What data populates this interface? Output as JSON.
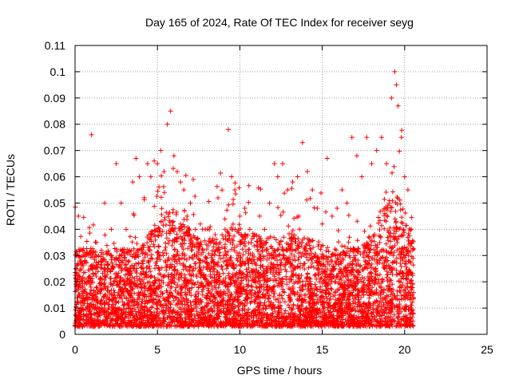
{
  "chart_data": {
    "type": "scatter",
    "title": "Day 165 of 2024, Rate Of TEC Index for receiver seyg",
    "xlabel": "GPS time / hours",
    "ylabel": "ROTI / TECUs",
    "xlim": [
      0,
      25
    ],
    "ylim": [
      0,
      0.11
    ],
    "xticks": [
      0,
      5,
      10,
      15,
      20,
      25
    ],
    "yticks": [
      0,
      0.01,
      0.02,
      0.03,
      0.04,
      0.05,
      0.06,
      0.07,
      0.08,
      0.09,
      0.1,
      0.11
    ],
    "xtick_labels": [
      "0",
      "5",
      "10",
      "15",
      "20",
      "25"
    ],
    "ytick_labels": [
      "0",
      "0.01",
      "0.02",
      "0.03",
      "0.04",
      "0.05",
      "0.06",
      "0.07",
      "0.08",
      "0.09",
      "0.1",
      "0.11"
    ],
    "grid": true,
    "marker": "plus",
    "marker_color": "#ff0000",
    "series": [
      {
        "x": [
          0.2,
          0.5,
          0.9,
          1.0,
          1.3,
          1.8,
          2.2,
          2.5,
          2.8,
          3.1,
          3.5,
          3.7,
          3.9,
          4.2,
          4.4,
          4.6,
          4.8,
          5.0,
          5.2,
          5.4,
          5.6,
          5.8,
          6.0,
          6.2,
          6.4,
          6.6,
          6.8,
          7.0,
          7.3,
          7.6,
          7.9,
          8.2,
          8.5,
          8.8,
          9.1,
          9.3,
          9.5,
          9.7,
          10.0,
          10.3,
          10.6,
          10.9,
          11.2,
          11.5,
          11.8,
          12.1,
          12.3,
          12.6,
          12.9,
          13.2,
          13.5,
          13.8,
          14.1,
          14.4,
          14.7,
          15.0,
          15.3,
          15.6,
          15.9,
          16.2,
          16.5,
          16.8,
          17.1,
          17.4,
          17.7,
          18.0,
          18.3,
          18.6,
          18.9,
          19.2,
          19.4,
          19.5,
          19.6,
          19.8,
          20.0,
          20.2,
          20.4,
          0.3,
          1.1,
          2.0,
          2.7,
          3.3,
          4.0,
          4.5,
          5.1,
          5.7,
          6.3,
          6.9,
          7.5,
          8.1,
          8.7,
          9.2,
          9.8,
          10.4,
          11.0,
          11.6,
          12.2,
          12.8,
          13.4,
          14.0,
          14.6,
          15.2,
          15.8,
          16.4,
          17.0,
          17.6,
          18.2,
          18.8,
          19.3,
          19.9,
          20.3
        ],
        "y": [
          0.045,
          0.03,
          0.022,
          0.076,
          0.035,
          0.05,
          0.04,
          0.065,
          0.05,
          0.04,
          0.058,
          0.067,
          0.06,
          0.052,
          0.065,
          0.06,
          0.066,
          0.065,
          0.07,
          0.062,
          0.08,
          0.085,
          0.068,
          0.062,
          0.058,
          0.055,
          0.045,
          0.05,
          0.04,
          0.042,
          0.04,
          0.041,
          0.038,
          0.035,
          0.04,
          0.078,
          0.06,
          0.055,
          0.045,
          0.048,
          0.04,
          0.038,
          0.045,
          0.04,
          0.05,
          0.065,
          0.06,
          0.065,
          0.055,
          0.058,
          0.06,
          0.073,
          0.062,
          0.055,
          0.048,
          0.042,
          0.067,
          0.045,
          0.048,
          0.055,
          0.05,
          0.075,
          0.068,
          0.06,
          0.075,
          0.065,
          0.07,
          0.075,
          0.065,
          0.09,
          0.1,
          0.095,
          0.087,
          0.075,
          0.06,
          0.055,
          0.04,
          0.012,
          0.015,
          0.018,
          0.02,
          0.025,
          0.016,
          0.02,
          0.025,
          0.022,
          0.03,
          0.02,
          0.018,
          0.02,
          0.015,
          0.025,
          0.02,
          0.022,
          0.018,
          0.02,
          0.025,
          0.022,
          0.02,
          0.015,
          0.018,
          0.016,
          0.02,
          0.025,
          0.022,
          0.028,
          0.03,
          0.025,
          0.03,
          0.028,
          0.02
        ]
      }
    ]
  }
}
